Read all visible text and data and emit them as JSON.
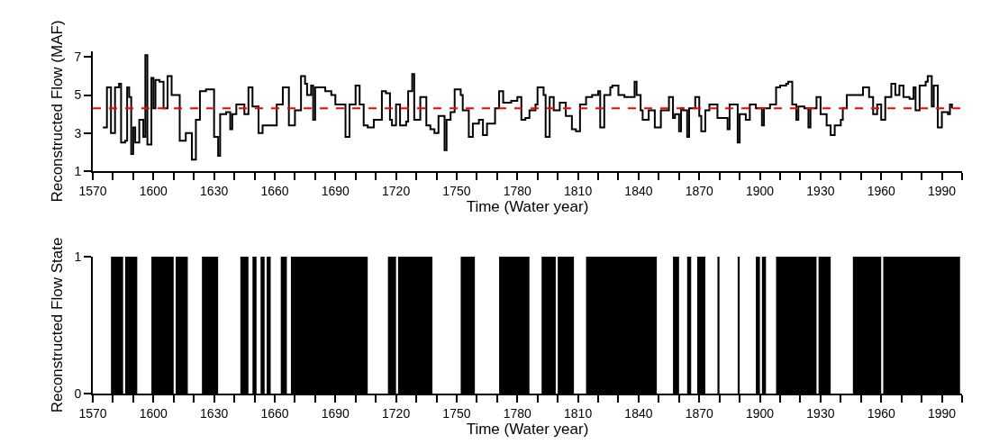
{
  "chart_data": [
    {
      "type": "step",
      "xlabel": "Time (Water year)",
      "ylabel": "Reconstructed Flow (MAF)",
      "xlim": [
        1570,
        2000
      ],
      "ylim": [
        1,
        7.3
      ],
      "yticks": [
        1,
        3,
        5,
        7
      ],
      "xticks": [
        1570,
        {
          "value": 1580,
          "label": null
        },
        {
          "value": 1590,
          "label": null
        },
        1600,
        {
          "value": 1610,
          "label": null
        },
        {
          "value": 1620,
          "label": null
        },
        1630,
        {
          "value": 1640,
          "label": null
        },
        {
          "value": 1650,
          "label": null
        },
        1660,
        {
          "value": 1670,
          "label": null
        },
        {
          "value": 1680,
          "label": null
        },
        1690,
        {
          "value": 1700,
          "label": null
        },
        {
          "value": 1710,
          "label": null
        },
        1720,
        {
          "value": 1730,
          "label": null
        },
        {
          "value": 1740,
          "label": null
        },
        1750,
        {
          "value": 1760,
          "label": null
        },
        {
          "value": 1770,
          "label": null
        },
        1780,
        {
          "value": 1790,
          "label": null
        },
        {
          "value": 1800,
          "label": null
        },
        1810,
        {
          "value": 1820,
          "label": null
        },
        {
          "value": 1830,
          "label": null
        },
        1840,
        {
          "value": 1850,
          "label": null
        },
        {
          "value": 1860,
          "label": null
        },
        1870,
        {
          "value": 1880,
          "label": null
        },
        {
          "value": 1890,
          "label": null
        },
        1900,
        {
          "value": 1910,
          "label": null
        },
        {
          "value": 1920,
          "label": null
        },
        1930,
        {
          "value": 1940,
          "label": null
        },
        {
          "value": 1950,
          "label": null
        },
        1960,
        {
          "value": 1970,
          "label": null
        },
        {
          "value": 1980,
          "label": null
        },
        1990,
        {
          "value": 2000,
          "label": null
        }
      ],
      "grid": false,
      "marker": "none",
      "line_style": "solid",
      "ref_lines": [
        {
          "axis": "y",
          "value": 4.3,
          "color": "#ff0000",
          "line_style": "dashed"
        }
      ],
      "series": [
        {
          "color": "#000000",
          "x": [
            1575,
            1577,
            1579,
            1581,
            1583,
            1584,
            1586,
            1587,
            1588,
            1589,
            1590,
            1591,
            1593,
            1595,
            1596,
            1597,
            1599,
            1600,
            1601,
            1603,
            1605,
            1607,
            1609,
            1612,
            1613,
            1616,
            1619,
            1621,
            1623,
            1626,
            1628,
            1630,
            1632,
            1633,
            1636,
            1638,
            1639,
            1641,
            1644,
            1645,
            1647,
            1649,
            1652,
            1654,
            1658,
            1661,
            1664,
            1667,
            1670,
            1673,
            1675,
            1676,
            1678,
            1679,
            1680,
            1685,
            1688,
            1690,
            1693,
            1695,
            1697,
            1700,
            1702,
            1704,
            1706,
            1709,
            1713,
            1715,
            1717,
            1718,
            1720,
            1722,
            1725,
            1726,
            1728,
            1729,
            1732,
            1735,
            1737,
            1739,
            1741,
            1744,
            1745,
            1747,
            1749,
            1752,
            1753,
            1756,
            1758,
            1761,
            1763,
            1765,
            1769,
            1771,
            1773,
            1777,
            1780,
            1782,
            1784,
            1786,
            1789,
            1790,
            1793,
            1794,
            1796,
            1798,
            1801,
            1804,
            1807,
            1809,
            1811,
            1814,
            1817,
            1820,
            1821,
            1823,
            1826,
            1827,
            1830,
            1833,
            1838,
            1839,
            1841,
            1842,
            1845,
            1848,
            1851,
            1855,
            1857,
            1858,
            1860,
            1861,
            1862,
            1864,
            1865,
            1868,
            1870,
            1871,
            1873,
            1875,
            1879,
            1884,
            1885,
            1887,
            1889,
            1890,
            1893,
            1895,
            1898,
            1901,
            1902,
            1905,
            1908,
            1910,
            1913,
            1914,
            1916,
            1918,
            1919,
            1922,
            1924,
            1925,
            1928,
            1930,
            1933,
            1935,
            1937,
            1940,
            1941,
            1943,
            1948,
            1951,
            1954,
            1956,
            1958,
            1960,
            1962,
            1965,
            1967,
            1969,
            1971,
            1974,
            1976,
            1977,
            1979,
            1982,
            1983,
            1985,
            1986,
            1988,
            1990,
            1993,
            1994,
            1995
          ],
          "values": [
            3.3,
            5.4,
            3.0,
            5.4,
            5.6,
            2.5,
            2.6,
            5.4,
            4.9,
            1.9,
            3.3,
            2.5,
            3.7,
            2.8,
            7.1,
            2.4,
            5.9,
            4.3,
            5.8,
            5.7,
            4.3,
            6.0,
            5.0,
            5.0,
            2.6,
            3.0,
            1.6,
            3.7,
            5.2,
            5.3,
            5.3,
            2.8,
            1.8,
            4.0,
            4.1,
            3.2,
            4.0,
            4.5,
            4.5,
            4.0,
            5.4,
            4.4,
            3.0,
            3.4,
            3.4,
            4.5,
            5.4,
            3.4,
            4.2,
            6.0,
            5.6,
            5.0,
            5.5,
            3.7,
            5.4,
            5.2,
            5.0,
            4.5,
            4.5,
            2.8,
            4.5,
            5.5,
            4.5,
            3.4,
            3.3,
            3.7,
            5.2,
            5.1,
            3.7,
            3.4,
            4.5,
            3.4,
            3.6,
            5.2,
            6.1,
            3.7,
            4.9,
            3.4,
            3.2,
            3.0,
            3.9,
            2.1,
            3.7,
            4.1,
            5.3,
            5.0,
            4.2,
            2.8,
            3.5,
            3.7,
            2.9,
            3.5,
            4.3,
            5.2,
            4.6,
            4.7,
            4.9,
            3.7,
            3.8,
            4.2,
            4.5,
            5.4,
            5.0,
            2.8,
            4.9,
            4.2,
            4.6,
            3.9,
            3.2,
            3.1,
            4.5,
            4.9,
            5.0,
            5.2,
            3.3,
            5.0,
            5.4,
            5.5,
            5.0,
            4.9,
            5.7,
            5.0,
            4.2,
            3.7,
            4.2,
            3.3,
            4.2,
            4.9,
            3.8,
            4.0,
            3.1,
            4.3,
            4.2,
            2.8,
            4.3,
            4.9,
            3.9,
            3.1,
            4.2,
            4.5,
            3.8,
            3.2,
            4.5,
            4.5,
            2.5,
            4.0,
            3.7,
            4.5,
            4.3,
            3.4,
            4.3,
            4.5,
            5.4,
            5.5,
            5.6,
            5.7,
            4.5,
            3.7,
            4.4,
            4.3,
            3.3,
            4.3,
            4.9,
            4.0,
            3.4,
            2.9,
            3.4,
            3.7,
            4.3,
            5.0,
            5.0,
            5.4,
            4.9,
            4.0,
            4.5,
            3.7,
            4.9,
            5.6,
            5.0,
            5.5,
            4.9,
            4.8,
            5.4,
            4.2,
            5.5,
            5.7,
            6.0,
            4.4,
            5.5,
            3.3,
            4.1,
            4.0,
            4.5,
            4.3
          ]
        }
      ]
    },
    {
      "type": "area",
      "xlabel": "Time (Water year)",
      "ylabel": "Reconstructed Flow State",
      "xlim": [
        1570,
        2000
      ],
      "ylim": [
        0,
        1
      ],
      "yticks": [
        0,
        1
      ],
      "xticks": [
        1570,
        {
          "value": 1580,
          "label": null
        },
        {
          "value": 1590,
          "label": null
        },
        1600,
        {
          "value": 1610,
          "label": null
        },
        {
          "value": 1620,
          "label": null
        },
        1630,
        {
          "value": 1640,
          "label": null
        },
        {
          "value": 1650,
          "label": null
        },
        1660,
        {
          "value": 1670,
          "label": null
        },
        {
          "value": 1680,
          "label": null
        },
        1690,
        {
          "value": 1700,
          "label": null
        },
        {
          "value": 1710,
          "label": null
        },
        1720,
        {
          "value": 1730,
          "label": null
        },
        {
          "value": 1740,
          "label": null
        },
        1750,
        {
          "value": 1760,
          "label": null
        },
        {
          "value": 1770,
          "label": null
        },
        1780,
        {
          "value": 1790,
          "label": null
        },
        {
          "value": 1800,
          "label": null
        },
        1810,
        {
          "value": 1820,
          "label": null
        },
        {
          "value": 1830,
          "label": null
        },
        1840,
        {
          "value": 1850,
          "label": null
        },
        {
          "value": 1860,
          "label": null
        },
        1870,
        {
          "value": 1880,
          "label": null
        },
        {
          "value": 1890,
          "label": null
        },
        1900,
        {
          "value": 1910,
          "label": null
        },
        {
          "value": 1920,
          "label": null
        },
        1930,
        {
          "value": 1940,
          "label": null
        },
        {
          "value": 1950,
          "label": null
        },
        1960,
        {
          "value": 1970,
          "label": null
        },
        {
          "value": 1980,
          "label": null
        },
        1990,
        {
          "value": 2000,
          "label": null
        }
      ],
      "grid": false,
      "series": [
        {
          "color": "#000000",
          "x": [
            1570,
            1579,
            1579,
            1585,
            1585,
            1586,
            1586,
            1592,
            1592,
            1599,
            1599,
            1610,
            1610,
            1611,
            1611,
            1617,
            1617,
            1624,
            1624,
            1632,
            1632,
            1643,
            1643,
            1647,
            1647,
            1649,
            1649,
            1651,
            1651,
            1653,
            1653,
            1655,
            1655,
            1656,
            1656,
            1658,
            1658,
            1663,
            1663,
            1666,
            1666,
            1668,
            1668,
            1706,
            1706,
            1716,
            1716,
            1720,
            1720,
            1721,
            1721,
            1738,
            1738,
            1752,
            1752,
            1759,
            1759,
            1771,
            1771,
            1786,
            1786,
            1792,
            1792,
            1799,
            1799,
            1800,
            1800,
            1808,
            1808,
            1814,
            1814,
            1849,
            1849,
            1857,
            1857,
            1860,
            1860,
            1864,
            1864,
            1866,
            1866,
            1869,
            1869,
            1873,
            1873,
            1879,
            1879,
            1880,
            1880,
            1889,
            1889,
            1890,
            1890,
            1898,
            1898,
            1900,
            1900,
            1901,
            1901,
            1903,
            1903,
            1908,
            1908,
            1928,
            1928,
            1929,
            1929,
            1935,
            1935,
            1946,
            1946,
            1960,
            1960,
            1961,
            1961,
            1999,
            1999,
            2000
          ],
          "values": [
            0,
            0,
            1,
            1,
            0,
            0,
            1,
            1,
            0,
            0,
            1,
            1,
            0,
            0,
            1,
            1,
            0,
            0,
            1,
            1,
            0,
            0,
            1,
            1,
            0,
            0,
            1,
            1,
            0,
            0,
            1,
            1,
            0,
            0,
            1,
            1,
            0,
            0,
            1,
            1,
            0,
            0,
            1,
            1,
            0,
            0,
            1,
            1,
            0,
            0,
            1,
            1,
            0,
            0,
            1,
            1,
            0,
            0,
            1,
            1,
            0,
            0,
            1,
            1,
            0,
            0,
            1,
            1,
            0,
            0,
            1,
            1,
            0,
            0,
            1,
            1,
            0,
            0,
            1,
            1,
            0,
            0,
            1,
            1,
            0,
            0,
            1,
            1,
            0,
            0,
            1,
            1,
            0,
            0,
            1,
            1,
            0,
            0,
            1,
            1,
            0,
            0,
            1,
            1,
            0,
            0,
            1,
            1,
            0,
            0,
            1,
            1,
            0,
            0,
            1,
            1,
            0,
            0
          ]
        }
      ]
    }
  ]
}
